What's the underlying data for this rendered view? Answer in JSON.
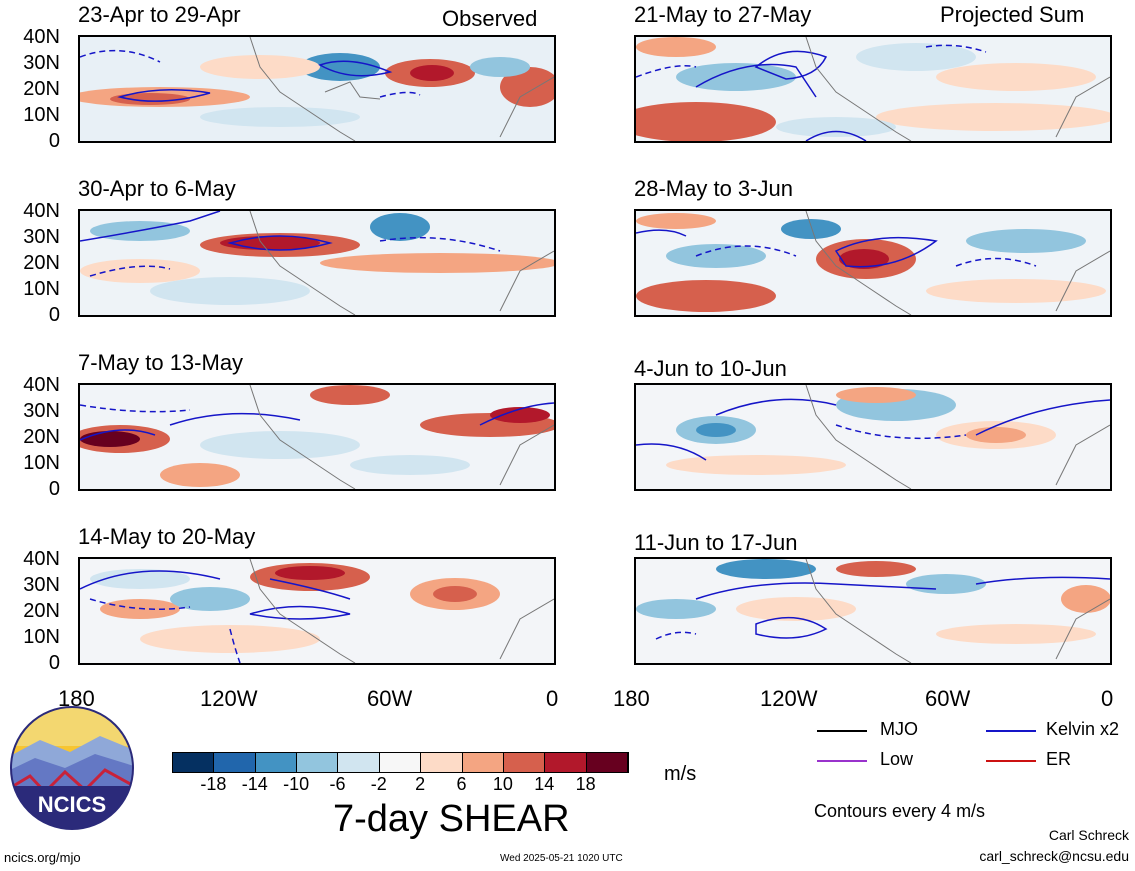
{
  "header": {
    "left_tag": "Observed",
    "right_tag": "Projected Sum"
  },
  "panels_left": [
    {
      "title": "23-Apr to 29-Apr"
    },
    {
      "title": "30-Apr to 6-May"
    },
    {
      "title": "7-May to 13-May"
    },
    {
      "title": "14-May to 20-May"
    }
  ],
  "panels_right": [
    {
      "title": "21-May to 27-May"
    },
    {
      "title": "28-May to 3-Jun"
    },
    {
      "title": "4-Jun to 10-Jun"
    },
    {
      "title": "11-Jun to 17-Jun"
    }
  ],
  "lat_labels": [
    "40N",
    "30N",
    "20N",
    "10N",
    "0"
  ],
  "lon_labels": [
    "180",
    "120W",
    "60W",
    "0"
  ],
  "colorbar": {
    "ticks": [
      "-18",
      "-14",
      "-10",
      "-6",
      "-2",
      "2",
      "6",
      "10",
      "14",
      "18"
    ],
    "colors": [
      "#053061",
      "#2166ac",
      "#4393c3",
      "#92c5de",
      "#d1e5f0",
      "#f7f7f7",
      "#fddbc7",
      "#f4a582",
      "#d6604d",
      "#b2182b",
      "#67001f"
    ],
    "unit": "m/s"
  },
  "title": "7-day SHEAR",
  "legend": {
    "items": [
      {
        "label": "MJO",
        "color": "#000000"
      },
      {
        "label": "Kelvin x2",
        "color": "#1515c8"
      },
      {
        "label": "Low",
        "color": "#9932cc"
      },
      {
        "label": "ER",
        "color": "#cc1111"
      }
    ],
    "note": "Contours every 4 m/s"
  },
  "logo": {
    "text": "NCICS"
  },
  "footer": {
    "url": "ncics.org/mjo",
    "timestamp": "Wed 2025-05-21 1020 UTC",
    "author": "Carl Schreck",
    "email": "carl_schreck@ncsu.edu"
  }
}
